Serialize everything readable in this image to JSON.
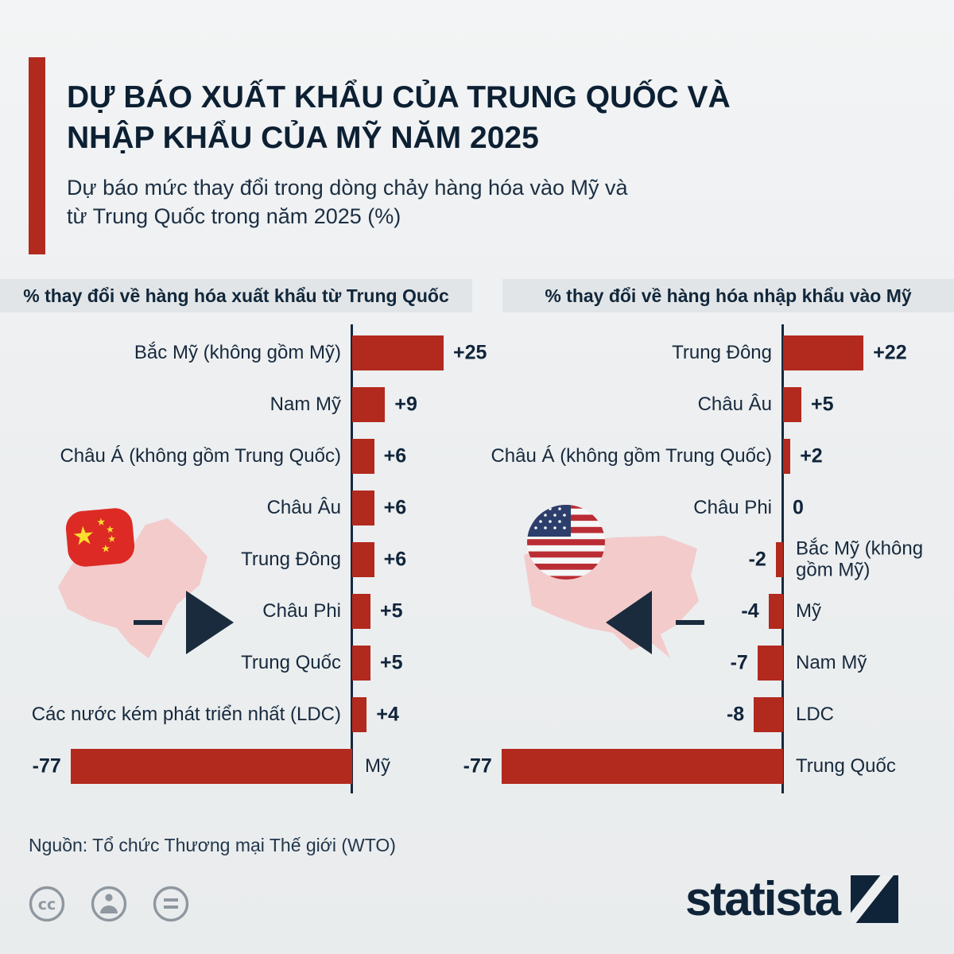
{
  "header": {
    "title": "DỰ BÁO XUẤT KHẨU CỦA TRUNG QUỐC VÀ\nNHẬP KHẨU CỦA MỸ NĂM 2025",
    "subtitle": "Dự báo mức thay đổi trong dòng chảy hàng hóa vào Mỹ và\ntừ Trung Quốc trong năm 2025 (%)"
  },
  "chart_data": [
    {
      "type": "bar",
      "orientation": "horizontal",
      "title": "% thay đổi về hàng hóa xuất khẩu từ Trung Quốc",
      "categories": [
        "Bắc Mỹ (không gồm Mỹ)",
        "Nam Mỹ",
        "Châu Á (không gồm Trung Quốc)",
        "Châu Âu",
        "Trung Đông",
        "Châu Phi",
        "Trung Quốc",
        "Các nước kém phát triển nhất (LDC)",
        "Mỹ"
      ],
      "values": [
        25,
        9,
        6,
        6,
        6,
        5,
        5,
        4,
        -77
      ],
      "value_labels": [
        "+25",
        "+9",
        "+6",
        "+6",
        "+6",
        "+5",
        "+5",
        "+4",
        "-77"
      ],
      "xlim": [
        -80,
        30
      ],
      "unit": "%"
    },
    {
      "type": "bar",
      "orientation": "horizontal",
      "title": "% thay đổi về hàng hóa nhập khẩu vào Mỹ",
      "categories": [
        "Trung Đông",
        "Châu Âu",
        "Châu Á (không gồm Trung Quốc)",
        "Châu Phi",
        "Bắc Mỹ (không gồm Mỹ)",
        "Mỹ",
        "Nam Mỹ",
        "LDC",
        "Trung Quốc"
      ],
      "values": [
        22,
        5,
        2,
        0,
        -2,
        -4,
        -7,
        -8,
        -77
      ],
      "value_labels": [
        "+22",
        "+5",
        "+2",
        "0",
        "-2",
        "-4",
        "-7",
        "-8",
        "-77"
      ],
      "xlim": [
        -80,
        30
      ],
      "unit": "%"
    }
  ],
  "decorations": {
    "left_flag": "china-flag-icon",
    "left_map": "china-map-silhouette",
    "left_arrow": "arrow-right-icon",
    "right_flag": "us-flag-icon",
    "right_map": "us-map-silhouette",
    "right_arrow": "arrow-left-icon"
  },
  "footer": {
    "source": "Nguồn: Tổ chức Thương mại Thế giới (WTO)",
    "logo_text": "statista",
    "license_icons": [
      "cc-icon",
      "attribution-icon",
      "equals-icon"
    ]
  },
  "colors": {
    "bar": "#b2291e",
    "accent": "#b2291e",
    "navy": "#13293d",
    "band": "#e2e5e7",
    "background": "#edeff1",
    "map_pink": "#f3cbcb",
    "china_flag_red": "#dd2a25",
    "flag_star_yellow": "#fcdf2e",
    "us_flag_red": "#bb2d35",
    "us_flag_blue": "#2c3e6b",
    "logo_navy": "#0f2438",
    "icon_gray": "#8f98a0"
  }
}
